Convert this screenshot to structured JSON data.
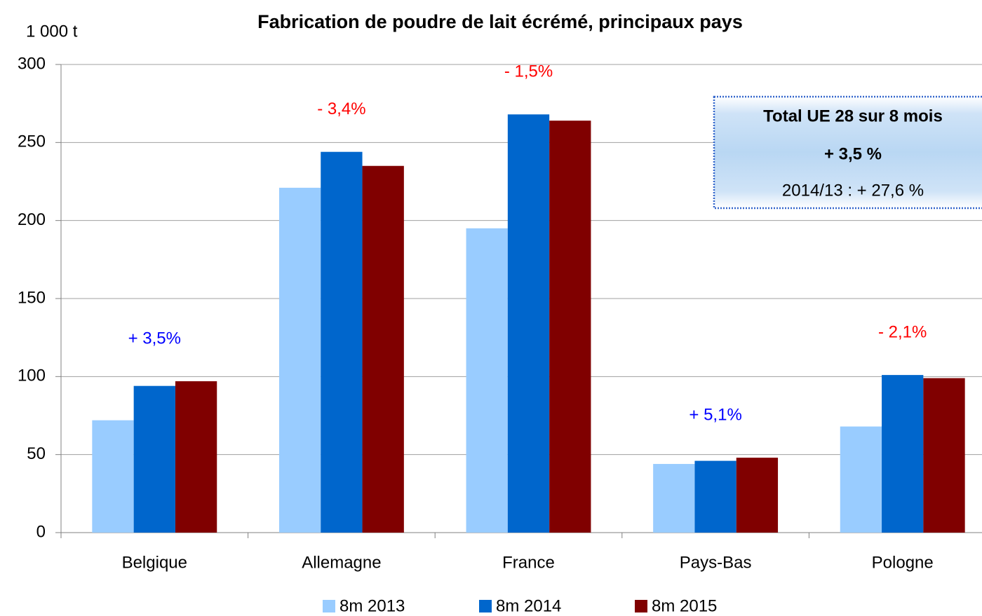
{
  "chart_data": {
    "type": "bar",
    "title": "Fabrication de poudre de lait écrémé, principaux pays",
    "y_axis_label": "1 000 t",
    "categories": [
      "Belgique",
      "Allemagne",
      "France",
      "Pays-Bas",
      "Pologne"
    ],
    "series": [
      {
        "name": "8m 2013",
        "color": "#99ccff",
        "values": [
          72,
          221,
          195,
          44,
          68
        ]
      },
      {
        "name": "8m 2014",
        "color": "#0066cc",
        "values": [
          94,
          244,
          268,
          46,
          101
        ]
      },
      {
        "name": "8m 2015",
        "color": "#800000",
        "values": [
          97,
          235,
          264,
          48,
          99
        ]
      }
    ],
    "ylim": [
      0,
      300
    ],
    "yticks": [
      0,
      50,
      100,
      150,
      200,
      250,
      300
    ],
    "grid": true,
    "legend": "bottom",
    "annotations": [
      {
        "text": "+ 3,5%",
        "color": "#0000ff"
      },
      {
        "text": "- 3,4%",
        "color": "#ff0000"
      },
      {
        "text": "- 1,5%",
        "color": "#ff0000"
      },
      {
        "text": "+ 5,1%",
        "color": "#0000ff"
      },
      {
        "text": "- 2,1%",
        "color": "#ff0000"
      }
    ],
    "info_box": [
      "Total UE 28 sur 8 mois",
      "+ 3,5 %",
      "2014/13 : + 27,6 %"
    ]
  }
}
